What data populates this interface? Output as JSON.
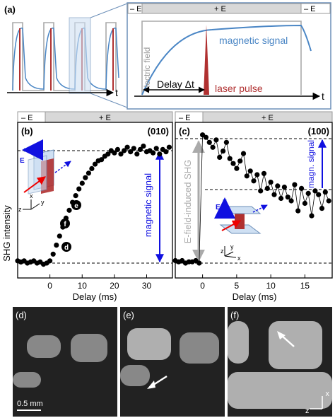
{
  "panel_a": {
    "label": "(a)",
    "t_label": "t",
    "minus_e_left": "– E",
    "plus_e": "+ E",
    "minus_e_right": "– E",
    "electric_field_label": "electric field",
    "magnetic_signal_label": "magnetic signal",
    "delay_label": "Delay Δt",
    "laser_pulse_label": "laser pulse"
  },
  "panel_b": {
    "label": "(b)",
    "orientation": "(010)",
    "minus_e": "– E",
    "plus_e": "+ E",
    "magnetic_signal_label": "magnetic signal",
    "e_arrow_label": "E",
    "axes_xyz": [
      "x",
      "y",
      "z"
    ],
    "markers": [
      "f",
      "e",
      "d"
    ]
  },
  "panel_c": {
    "label": "(c)",
    "orientation": "(100)",
    "minus_e": "– E",
    "plus_e": "+ E",
    "efield_shg_label": "E-field-induced SHG",
    "magn_signal_label": "magn. signal",
    "e_arrow_label": "E",
    "axes_xyz": [
      "z",
      "y",
      "x"
    ]
  },
  "y_axis_label": "SHG intensity",
  "micrographs": [
    {
      "label": "(d)",
      "scale": "0.5 mm"
    },
    {
      "label": "(e)"
    },
    {
      "label": "(f)",
      "axis_x": "x",
      "axis_z": "z"
    }
  ],
  "colors": {
    "blue": "#1010e0",
    "signal_curve": "#4a86c5",
    "laser": "#b03030",
    "field_bar": "#d8d8d8"
  },
  "chart_data": [
    {
      "type": "scatter",
      "panel": "(b)",
      "xlabel": "Delay (ms)",
      "ylabel": "SHG intensity",
      "xlim": [
        -10,
        38
      ],
      "xticks": [
        0,
        10,
        20,
        30
      ],
      "ylim": [
        0,
        1.05
      ],
      "x": [
        -10,
        -9,
        -8,
        -7,
        -6,
        -5,
        -4,
        -3,
        -2,
        -1,
        0,
        1,
        2,
        3,
        4,
        5,
        6,
        7,
        8,
        9,
        10,
        11,
        12,
        13,
        14,
        15,
        16,
        17,
        18,
        19,
        20,
        21,
        22,
        23,
        24,
        25,
        26,
        27,
        28,
        29,
        30,
        31,
        32,
        33,
        34,
        35,
        36,
        37
      ],
      "y": [
        0.02,
        0.01,
        0.02,
        0.0,
        0.01,
        0.02,
        0.0,
        0.01,
        -0.01,
        0.0,
        0.02,
        0.08,
        0.16,
        0.24,
        0.32,
        0.4,
        0.47,
        0.54,
        0.6,
        0.66,
        0.71,
        0.76,
        0.8,
        0.84,
        0.88,
        0.91,
        0.92,
        0.95,
        0.97,
        1.0,
        0.98,
        1.01,
        0.97,
        1.0,
        1.03,
        0.99,
        1.02,
        0.97,
        1.01,
        1.04,
        0.99,
        1.0,
        0.98,
        1.02,
        0.97,
        1.01,
        0.99,
        1.03
      ],
      "dashed_levels": [
        0,
        1.0
      ]
    },
    {
      "type": "line",
      "panel": "(c)",
      "xlabel": "Delay (ms)",
      "xlim": [
        -4,
        19
      ],
      "xticks": [
        0,
        5,
        10,
        15
      ],
      "ylim": [
        0,
        1.05
      ],
      "x": [
        -4,
        -3.5,
        -3,
        -2.5,
        -2,
        -1.5,
        -1,
        -0.5,
        0,
        0.5,
        1,
        1.5,
        2,
        2.5,
        3,
        3.5,
        4,
        4.5,
        5,
        5.5,
        6,
        6.5,
        7,
        7.5,
        8,
        8.5,
        9,
        9.5,
        10,
        10.5,
        11,
        11.5,
        12,
        12.5,
        13,
        13.5,
        14,
        14.5,
        15,
        15.5,
        16,
        16.5,
        17,
        17.5,
        18,
        18.5
      ],
      "y": [
        0.02,
        0.01,
        0.02,
        0.0,
        0.01,
        0.01,
        0.02,
        0.0,
        1.03,
        1.01,
        0.97,
        0.93,
        0.99,
        0.85,
        0.9,
        0.97,
        0.84,
        0.8,
        0.76,
        0.82,
        0.88,
        0.7,
        0.74,
        0.66,
        0.71,
        0.58,
        0.72,
        0.6,
        0.65,
        0.55,
        0.62,
        0.52,
        0.61,
        0.53,
        0.5,
        0.63,
        0.42,
        0.6,
        0.48,
        0.56,
        0.38,
        0.58,
        0.55,
        0.44,
        0.57,
        0.5
      ],
      "dashed_levels": [
        0,
        1.0,
        0.56
      ]
    }
  ]
}
